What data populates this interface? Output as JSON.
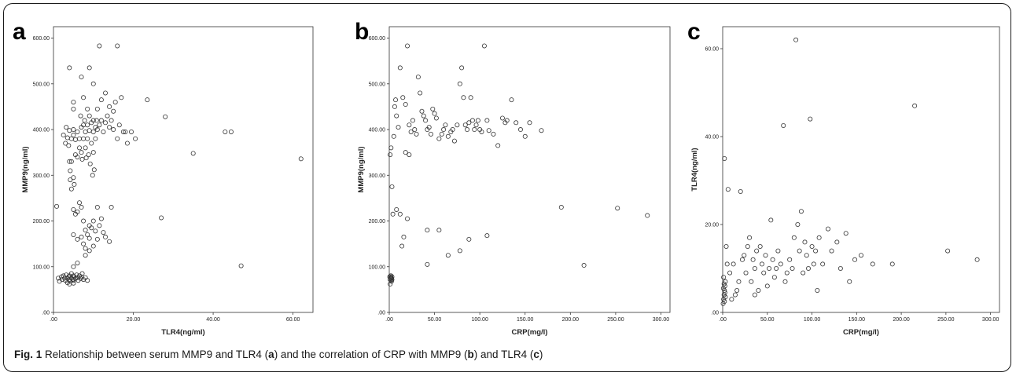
{
  "caption": {
    "fig": "Fig. 1",
    "parts": [
      "Relationship between serum MMP9 and TLR4 (",
      "a",
      ") and the correlation of CRP with MMP9 (",
      "b",
      ") and TLR4 (",
      "c",
      ")"
    ]
  },
  "chart_data": [
    {
      "type": "scatter",
      "panel_label": "a",
      "xlabel": "TLR4(ng/ml)",
      "ylabel": "MMP9(ng/ml)",
      "xlim": [
        0,
        65
      ],
      "ylim": [
        0,
        625
      ],
      "xticks": [
        0,
        20,
        40,
        60
      ],
      "xtick_labels": [
        ".00",
        "20.00",
        "40.00",
        "60.00"
      ],
      "yticks": [
        0,
        100,
        200,
        300,
        400,
        500,
        600
      ],
      "ytick_labels": [
        ".00",
        "100.00",
        "200.00",
        "300.00",
        "400.00",
        "500.00",
        "600.00"
      ],
      "points": [
        [
          0.8,
          232
        ],
        [
          1.2,
          75
        ],
        [
          1.5,
          68
        ],
        [
          2,
          78
        ],
        [
          2.2,
          72
        ],
        [
          2.5,
          80
        ],
        [
          2.8,
          75
        ],
        [
          3,
          70
        ],
        [
          3.2,
          82
        ],
        [
          3.5,
          75
        ],
        [
          3.5,
          65
        ],
        [
          3.8,
          78
        ],
        [
          4,
          72
        ],
        [
          4,
          80
        ],
        [
          4.2,
          68
        ],
        [
          4.5,
          75
        ],
        [
          4.5,
          85
        ],
        [
          4.8,
          72
        ],
        [
          5,
          80
        ],
        [
          5,
          70
        ],
        [
          5.2,
          78
        ],
        [
          5.5,
          74
        ],
        [
          5.8,
          82
        ],
        [
          6,
          76
        ],
        [
          6.2,
          70
        ],
        [
          6.5,
          80
        ],
        [
          6.8,
          74
        ],
        [
          7,
          78
        ],
        [
          7.2,
          85
        ],
        [
          7.5,
          72
        ],
        [
          8,
          76
        ],
        [
          8.5,
          70
        ],
        [
          4,
          62
        ],
        [
          5,
          64
        ],
        [
          2.5,
          388
        ],
        [
          3,
          370
        ],
        [
          3.2,
          405
        ],
        [
          3.5,
          382
        ],
        [
          3.8,
          365
        ],
        [
          4,
          398
        ],
        [
          4,
          330
        ],
        [
          4.2,
          310
        ],
        [
          4.5,
          380
        ],
        [
          4.2,
          290
        ],
        [
          4.5,
          270
        ],
        [
          4.5,
          330
        ],
        [
          5,
          400
        ],
        [
          5,
          388
        ],
        [
          5,
          445
        ],
        [
          5.5,
          378
        ],
        [
          5.5,
          345
        ],
        [
          6,
          340
        ],
        [
          6,
          395
        ],
        [
          6.5,
          360
        ],
        [
          6.5,
          380
        ],
        [
          6.8,
          430
        ],
        [
          7,
          405
        ],
        [
          7,
          350
        ],
        [
          7.2,
          335
        ],
        [
          7.5,
          410
        ],
        [
          7.5,
          380
        ],
        [
          7.8,
          420
        ],
        [
          8,
          395
        ],
        [
          8,
          360
        ],
        [
          8.2,
          338
        ],
        [
          8.5,
          410
        ],
        [
          8.5,
          380
        ],
        [
          8.8,
          345
        ],
        [
          9,
          430
        ],
        [
          9,
          398
        ],
        [
          9.2,
          325
        ],
        [
          9.5,
          415
        ],
        [
          9.5,
          370
        ],
        [
          9.8,
          300
        ],
        [
          10,
          420
        ],
        [
          10,
          395
        ],
        [
          10,
          350
        ],
        [
          10.2,
          312
        ],
        [
          10.5,
          405
        ],
        [
          10.5,
          380
        ],
        [
          10.8,
          420
        ],
        [
          11,
          400
        ],
        [
          11,
          445
        ],
        [
          11.5,
          410
        ],
        [
          12,
          420
        ],
        [
          12,
          465
        ],
        [
          12.5,
          395
        ],
        [
          13,
          415
        ],
        [
          13,
          480
        ],
        [
          13.5,
          430
        ],
        [
          14,
          450
        ],
        [
          14,
          405
        ],
        [
          14.5,
          420
        ],
        [
          15,
          440
        ],
        [
          15,
          400
        ],
        [
          15.5,
          460
        ],
        [
          16,
          380
        ],
        [
          16.5,
          410
        ],
        [
          17,
          470
        ],
        [
          17.5,
          395
        ],
        [
          18,
          395
        ],
        [
          18.5,
          370
        ],
        [
          19.5,
          395
        ],
        [
          20.5,
          380
        ],
        [
          23.5,
          465
        ],
        [
          28,
          428
        ],
        [
          35,
          348
        ],
        [
          43,
          395
        ],
        [
          44.5,
          395
        ],
        [
          62,
          336
        ],
        [
          4,
          535
        ],
        [
          5,
          460
        ],
        [
          7,
          515
        ],
        [
          7.5,
          470
        ],
        [
          8.5,
          445
        ],
        [
          9,
          535
        ],
        [
          10,
          500
        ],
        [
          11.5,
          583
        ],
        [
          16,
          583
        ],
        [
          5,
          295
        ],
        [
          5.2,
          280
        ],
        [
          5,
          225
        ],
        [
          5.5,
          215
        ],
        [
          6,
          220
        ],
        [
          6.5,
          240
        ],
        [
          7,
          230
        ],
        [
          7.5,
          200
        ],
        [
          8,
          180
        ],
        [
          8.5,
          170
        ],
        [
          9,
          190
        ],
        [
          9.5,
          185
        ],
        [
          10,
          200
        ],
        [
          10.5,
          178
        ],
        [
          11,
          230
        ],
        [
          11.5,
          190
        ],
        [
          12,
          205
        ],
        [
          12.5,
          175
        ],
        [
          13,
          165
        ],
        [
          14,
          155
        ],
        [
          14.5,
          230
        ],
        [
          7,
          165
        ],
        [
          7.5,
          150
        ],
        [
          8,
          140
        ],
        [
          9,
          135
        ],
        [
          10,
          145
        ],
        [
          6,
          160
        ],
        [
          5,
          170
        ],
        [
          9,
          162
        ],
        [
          8,
          125
        ],
        [
          11,
          160
        ],
        [
          5,
          100
        ],
        [
          6,
          108
        ],
        [
          27,
          207
        ],
        [
          47,
          102
        ]
      ]
    },
    {
      "type": "scatter",
      "panel_label": "b",
      "xlabel": "CRP(mg/l)",
      "ylabel": "MMP9(ng/ml)",
      "xlim": [
        0,
        310
      ],
      "ylim": [
        0,
        625
      ],
      "xticks": [
        0,
        50,
        100,
        150,
        200,
        250,
        300
      ],
      "xtick_labels": [
        ".00",
        "50.00",
        "100.00",
        "150.00",
        "200.00",
        "250.00",
        "300.00"
      ],
      "yticks": [
        0,
        100,
        200,
        300,
        400,
        500,
        600
      ],
      "ytick_labels": [
        ".00",
        "100.00",
        "200.00",
        "300.00",
        "400.00",
        "500.00",
        "600.00"
      ],
      "points": [
        [
          0.5,
          78
        ],
        [
          1,
          72
        ],
        [
          1.5,
          80
        ],
        [
          2,
          75
        ],
        [
          2.5,
          68
        ],
        [
          1,
          62
        ],
        [
          2,
          70
        ],
        [
          3,
          78
        ],
        [
          1.5,
          76
        ],
        [
          2.5,
          74
        ],
        [
          3,
          72
        ],
        [
          2,
          80
        ],
        [
          1,
          345
        ],
        [
          2,
          360
        ],
        [
          3,
          275
        ],
        [
          4,
          215
        ],
        [
          5,
          385
        ],
        [
          6,
          450
        ],
        [
          7,
          465
        ],
        [
          8,
          430
        ],
        [
          10,
          405
        ],
        [
          12,
          535
        ],
        [
          15,
          470
        ],
        [
          18,
          455
        ],
        [
          20,
          583
        ],
        [
          22,
          410
        ],
        [
          24,
          395
        ],
        [
          26,
          420
        ],
        [
          28,
          400
        ],
        [
          30,
          390
        ],
        [
          32,
          515
        ],
        [
          34,
          480
        ],
        [
          36,
          440
        ],
        [
          38,
          430
        ],
        [
          40,
          420
        ],
        [
          42,
          400
        ],
        [
          44,
          405
        ],
        [
          46,
          390
        ],
        [
          48,
          445
        ],
        [
          50,
          435
        ],
        [
          52,
          425
        ],
        [
          55,
          380
        ],
        [
          58,
          390
        ],
        [
          60,
          400
        ],
        [
          62,
          410
        ],
        [
          65,
          385
        ],
        [
          68,
          395
        ],
        [
          70,
          400
        ],
        [
          72,
          375
        ],
        [
          75,
          410
        ],
        [
          78,
          500
        ],
        [
          80,
          535
        ],
        [
          82,
          470
        ],
        [
          84,
          410
        ],
        [
          86,
          400
        ],
        [
          88,
          415
        ],
        [
          90,
          470
        ],
        [
          92,
          420
        ],
        [
          94,
          400
        ],
        [
          96,
          410
        ],
        [
          98,
          420
        ],
        [
          100,
          400
        ],
        [
          102,
          395
        ],
        [
          105,
          583
        ],
        [
          108,
          420
        ],
        [
          110,
          398
        ],
        [
          115,
          390
        ],
        [
          120,
          365
        ],
        [
          125,
          425
        ],
        [
          128,
          415
        ],
        [
          130,
          420
        ],
        [
          135,
          465
        ],
        [
          140,
          415
        ],
        [
          145,
          400
        ],
        [
          150,
          385
        ],
        [
          155,
          415
        ],
        [
          168,
          398
        ],
        [
          18,
          350
        ],
        [
          22,
          345
        ],
        [
          8,
          225
        ],
        [
          12,
          215
        ],
        [
          16,
          165
        ],
        [
          20,
          205
        ],
        [
          14,
          145
        ],
        [
          42,
          180
        ],
        [
          55,
          180
        ],
        [
          65,
          125
        ],
        [
          78,
          135
        ],
        [
          88,
          160
        ],
        [
          108,
          168
        ],
        [
          42,
          105
        ],
        [
          190,
          230
        ],
        [
          215,
          103
        ],
        [
          252,
          228
        ],
        [
          285,
          212
        ]
      ]
    },
    {
      "type": "scatter",
      "panel_label": "c",
      "xlabel": "CRP(mg/l)",
      "ylabel": "TLR4(ng/ml)",
      "xlim": [
        0,
        310
      ],
      "ylim": [
        0,
        65
      ],
      "xticks": [
        0,
        50,
        100,
        150,
        200,
        250,
        300
      ],
      "xtick_labels": [
        ".00",
        "50.00",
        "100.00",
        "150.00",
        "200.00",
        "250.00",
        "300.00"
      ],
      "yticks": [
        0,
        20,
        40,
        60
      ],
      "ytick_labels": [
        ".00",
        "20.00",
        "40.00",
        "60.00"
      ],
      "points": [
        [
          0.5,
          2
        ],
        [
          1,
          3
        ],
        [
          1.5,
          4
        ],
        [
          2,
          5
        ],
        [
          2.5,
          6
        ],
        [
          3,
          7
        ],
        [
          1,
          8
        ],
        [
          2,
          2.5
        ],
        [
          3,
          3.5
        ],
        [
          1.5,
          6.5
        ],
        [
          2.5,
          4.5
        ],
        [
          0.8,
          5.5
        ],
        [
          2,
          35
        ],
        [
          6,
          28
        ],
        [
          12,
          11
        ],
        [
          16,
          5
        ],
        [
          20,
          27.5
        ],
        [
          22,
          12
        ],
        [
          24,
          13
        ],
        [
          26,
          9
        ],
        [
          28,
          15
        ],
        [
          30,
          17
        ],
        [
          32,
          7
        ],
        [
          34,
          12
        ],
        [
          36,
          10
        ],
        [
          38,
          14
        ],
        [
          40,
          5
        ],
        [
          42,
          15
        ],
        [
          44,
          11
        ],
        [
          46,
          9
        ],
        [
          48,
          13
        ],
        [
          50,
          6
        ],
        [
          52,
          10
        ],
        [
          54,
          21
        ],
        [
          56,
          12
        ],
        [
          58,
          8
        ],
        [
          60,
          10
        ],
        [
          62,
          14
        ],
        [
          65,
          11
        ],
        [
          68,
          42.5
        ],
        [
          70,
          7
        ],
        [
          72,
          9
        ],
        [
          75,
          12
        ],
        [
          78,
          10
        ],
        [
          80,
          17
        ],
        [
          82,
          62
        ],
        [
          84,
          20
        ],
        [
          86,
          14
        ],
        [
          88,
          23
        ],
        [
          90,
          9
        ],
        [
          92,
          16
        ],
        [
          94,
          13
        ],
        [
          96,
          10
        ],
        [
          98,
          44
        ],
        [
          100,
          15
        ],
        [
          102,
          11
        ],
        [
          104,
          14
        ],
        [
          106,
          5
        ],
        [
          108,
          17
        ],
        [
          112,
          11
        ],
        [
          118,
          19
        ],
        [
          122,
          14
        ],
        [
          128,
          16
        ],
        [
          132,
          10
        ],
        [
          138,
          18
        ],
        [
          142,
          7
        ],
        [
          148,
          12
        ],
        [
          155,
          13
        ],
        [
          168,
          11
        ],
        [
          190,
          11
        ],
        [
          215,
          47
        ],
        [
          252,
          14
        ],
        [
          285,
          12
        ],
        [
          5,
          11
        ],
        [
          8,
          9
        ],
        [
          10,
          3
        ],
        [
          14,
          4
        ],
        [
          18,
          7
        ],
        [
          4,
          15
        ],
        [
          36,
          4
        ]
      ]
    }
  ]
}
